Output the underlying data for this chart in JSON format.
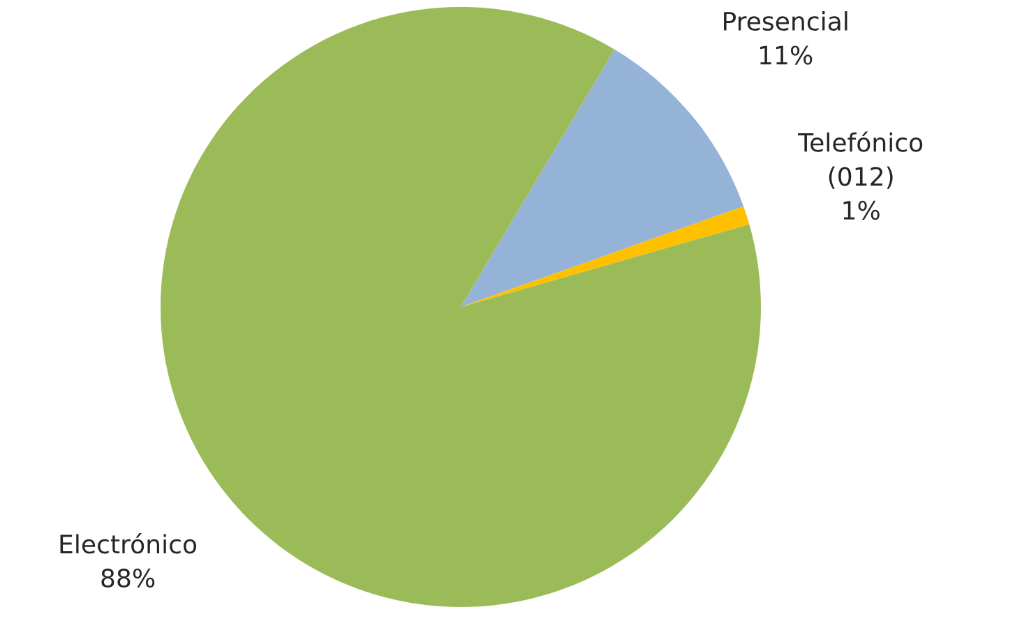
{
  "chart_data": {
    "type": "pie",
    "categories": [
      "Presencial",
      "Telefónico\n(012)",
      "Electrónico"
    ],
    "values": [
      11,
      1,
      88
    ],
    "value_labels": [
      "11%",
      "1%",
      "88%"
    ],
    "colors": [
      "#95b3d7",
      "#ffc000",
      "#9bbb59"
    ],
    "legend": false
  }
}
